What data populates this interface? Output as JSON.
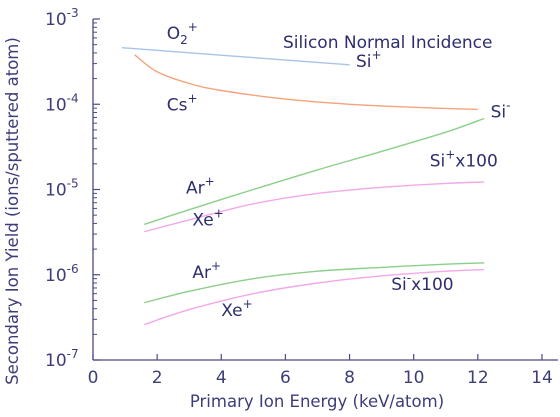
{
  "chart_data": {
    "type": "line",
    "title": "Silicon Normal Incidence",
    "xlabel": "Primary Ion Energy (keV/atom)",
    "ylabel": "Secondary Ion Yield (ions/sputtered atom)",
    "xscale": "linear",
    "yscale": "log",
    "xlim": [
      0,
      14.5
    ],
    "ylim": [
      1e-07,
      0.001
    ],
    "grid": false,
    "legend": "none",
    "x_ticks": [
      0,
      2,
      4,
      6,
      8,
      10,
      12,
      14
    ],
    "y_ticks": [
      {
        "value": 1e-07,
        "base": "10",
        "exp": "-7"
      },
      {
        "value": 1e-06,
        "base": "10",
        "exp": "-6"
      },
      {
        "value": 1e-05,
        "base": "10",
        "exp": "-5"
      },
      {
        "value": 0.0001,
        "base": "10",
        "exp": "-4"
      },
      {
        "value": 0.001,
        "base": "10",
        "exp": "-3"
      }
    ],
    "series": [
      {
        "color": "#a8c4e8",
        "points": [
          [
            0.9,
            0.00046
          ],
          [
            8.0,
            0.00029
          ]
        ]
      },
      {
        "color": "#f4a37a",
        "points": [
          [
            1.3,
            0.00038
          ],
          [
            2.0,
            0.00024
          ],
          [
            3.0,
            0.000175
          ],
          [
            4.0,
            0.000145
          ],
          [
            6.0,
            0.000115
          ],
          [
            8.0,
            0.0001
          ],
          [
            10.0,
            9.2e-05
          ],
          [
            12.0,
            8.7e-05
          ]
        ]
      },
      {
        "color": "#8ccf8a",
        "points": [
          [
            1.6,
            3.9e-06
          ],
          [
            3.0,
            5.8e-06
          ],
          [
            5.0,
            1e-05
          ],
          [
            7.0,
            1.7e-05
          ],
          [
            9.0,
            2.8e-05
          ],
          [
            11.0,
            4.7e-05
          ],
          [
            12.2,
            6.8e-05
          ]
        ]
      },
      {
        "color": "#f3a8e8",
        "points": [
          [
            1.6,
            3.2e-06
          ],
          [
            3.0,
            4.4e-06
          ],
          [
            5.0,
            6.8e-06
          ],
          [
            7.0,
            9e-06
          ],
          [
            9.0,
            1.06e-05
          ],
          [
            11.0,
            1.18e-05
          ],
          [
            12.2,
            1.22e-05
          ]
        ]
      },
      {
        "color": "#8ccf8a",
        "points": [
          [
            1.6,
            4.7e-07
          ],
          [
            3.0,
            6.4e-07
          ],
          [
            5.0,
            9e-07
          ],
          [
            7.0,
            1.1e-06
          ],
          [
            9.0,
            1.22e-06
          ],
          [
            11.0,
            1.33e-06
          ],
          [
            12.2,
            1.38e-06
          ]
        ]
      },
      {
        "color": "#f3a8e8",
        "points": [
          [
            1.6,
            2.6e-07
          ],
          [
            3.0,
            3.9e-07
          ],
          [
            5.0,
            6e-07
          ],
          [
            7.0,
            8e-07
          ],
          [
            9.0,
            9.7e-07
          ],
          [
            11.0,
            1.1e-06
          ],
          [
            12.2,
            1.15e-06
          ]
        ]
      }
    ],
    "annotations": [
      {
        "x": 2.3,
        "y": 0.00058,
        "main": "O",
        "sub": "2",
        "sup": "+"
      },
      {
        "x": 8.2,
        "y": 0.000275,
        "main": "Si",
        "sup": "+"
      },
      {
        "x": 2.3,
        "y": 8.5e-05,
        "main": "Cs",
        "sup": "+"
      },
      {
        "x": 12.4,
        "y": 7e-05,
        "main": "Si",
        "sup": "-"
      },
      {
        "x": 10.5,
        "y": 1.85e-05,
        "main": "Si",
        "sup": "+",
        "tail": "x100"
      },
      {
        "x": 2.9,
        "y": 9e-06,
        "main": "Ar",
        "sup": "+"
      },
      {
        "x": 3.1,
        "y": 3.8e-06,
        "main": "Xe",
        "sup": "+"
      },
      {
        "x": 3.1,
        "y": 9.2e-07,
        "main": "Ar",
        "sup": "+"
      },
      {
        "x": 9.3,
        "y": 6.6e-07,
        "main": "Si",
        "sup": "-",
        "tail": "x100"
      },
      {
        "x": 4.0,
        "y": 3.3e-07,
        "main": "Xe",
        "sup": "+"
      }
    ]
  }
}
